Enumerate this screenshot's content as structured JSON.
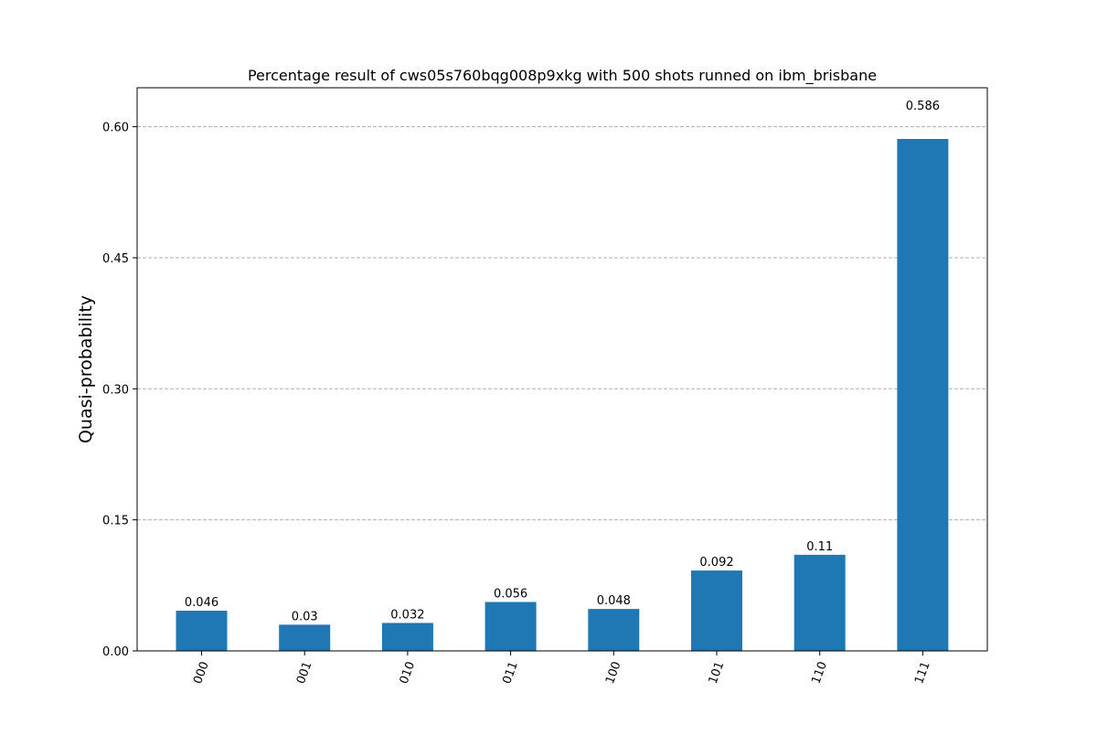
{
  "chart_data": {
    "type": "bar",
    "title": "Percentage result of cws05s760bqg008p9xkg with 500 shots runned on ibm_brisbane",
    "xlabel": "",
    "ylabel": "Quasi-probability",
    "categories": [
      "000",
      "001",
      "010",
      "011",
      "100",
      "101",
      "110",
      "111"
    ],
    "values": [
      0.046,
      0.03,
      0.032,
      0.056,
      0.048,
      0.092,
      0.11,
      0.586
    ],
    "value_labels": [
      "0.046",
      "0.03",
      "0.032",
      "0.056",
      "0.048",
      "0.092",
      "0.11",
      "0.586"
    ],
    "ylim": [
      0,
      0.6446
    ],
    "yticks": [
      0.0,
      0.15,
      0.3,
      0.45,
      0.6
    ],
    "ytick_labels": [
      "0.00",
      "0.15",
      "0.30",
      "0.45",
      "0.60"
    ],
    "xtick_rotation_deg": 70,
    "grid": "y-dashed",
    "bar_color": "#1f77b4",
    "grid_color": "#b0b0b0"
  }
}
